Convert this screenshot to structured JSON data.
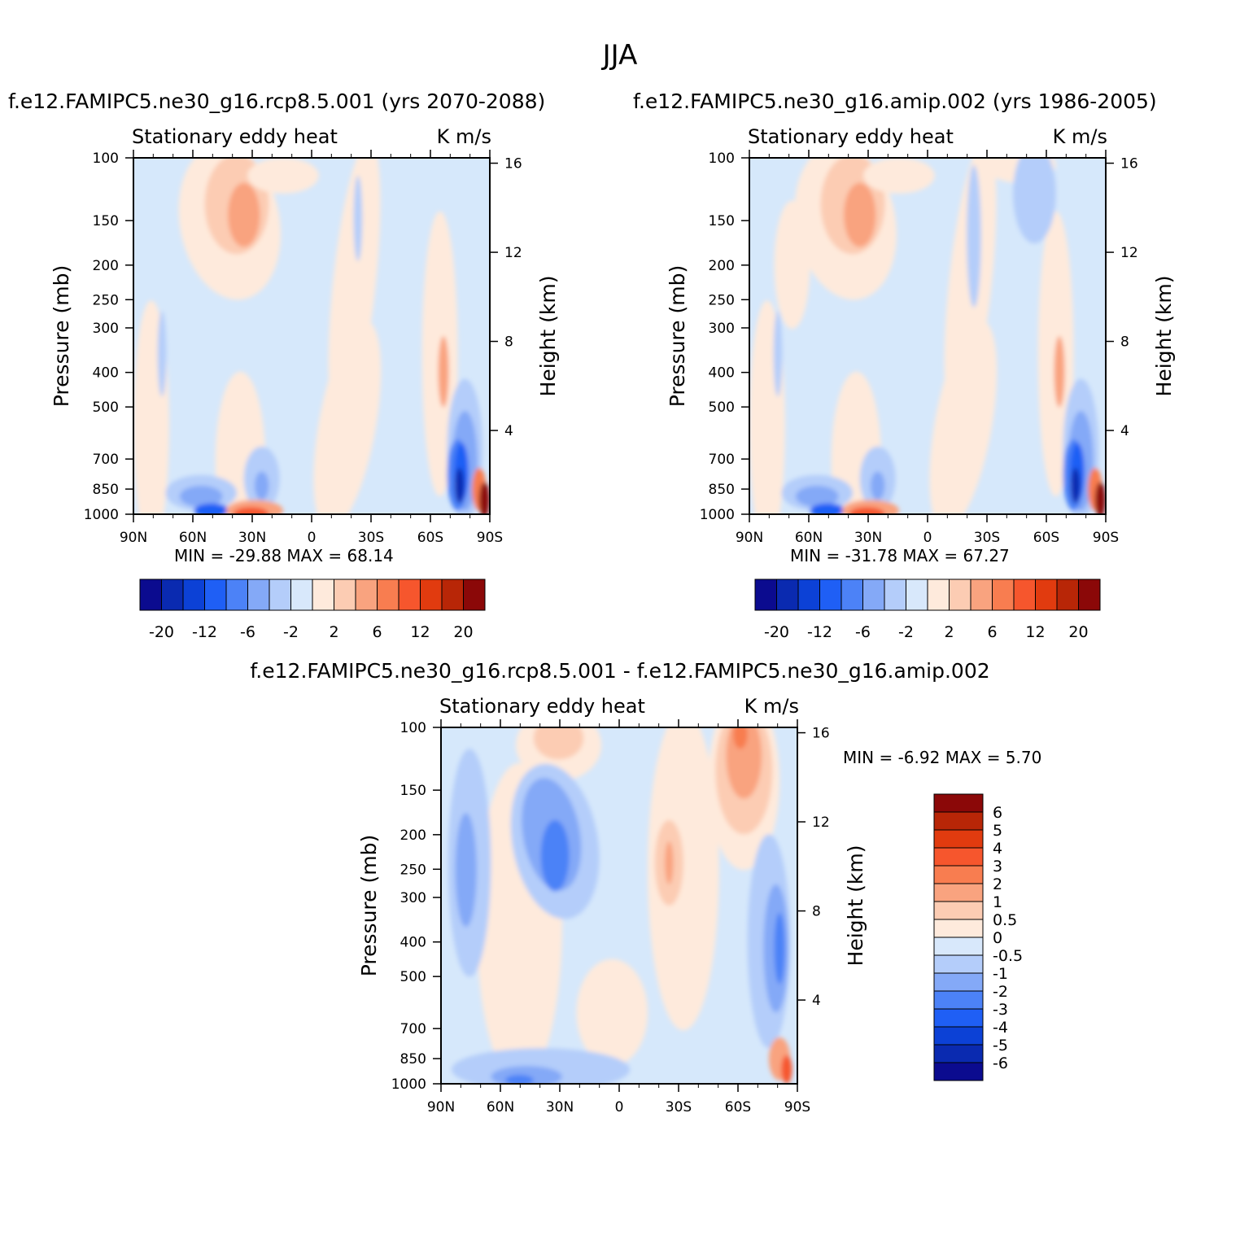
{
  "figure": {
    "title": "JJA",
    "panels": [
      {
        "title": "f.e12.FAMIPC5.ne30_g16.rcp8.5.001 (yrs 2070-2088)",
        "left_label": "Stationary eddy heat",
        "right_label": "K m/s",
        "min_max_text": "MIN = -29.88   MAX =   68.14"
      },
      {
        "title": "f.e12.FAMIPC5.ne30_g16.amip.002 (yrs 1986-2005)",
        "left_label": "Stationary eddy heat",
        "right_label": "K m/s",
        "min_max_text": "MIN = -31.78   MAX =   67.27"
      },
      {
        "title": "f.e12.FAMIPC5.ne30_g16.rcp8.5.001 - f.e12.FAMIPC5.ne30_g16.amip.002",
        "left_label": "Stationary eddy heat",
        "right_label": "K m/s",
        "min_max_text": "MIN =   -6.92   MAX =    5.70"
      }
    ]
  },
  "chart_data": [
    {
      "type": "heatmap",
      "title": "Stationary eddy heat",
      "units": "K m/s",
      "xlabel": "",
      "ylabel": "Pressure (mb)",
      "y2label": "Height (km)",
      "xticks": [
        "90N",
        "60N",
        "30N",
        "0",
        "30S",
        "60S",
        "90S"
      ],
      "yticks": [
        100,
        150,
        200,
        250,
        300,
        400,
        500,
        700,
        850,
        1000
      ],
      "y2ticks": [
        4,
        8,
        12,
        16
      ],
      "min": -29.88,
      "max": 68.14,
      "colorbar_labels": [
        "-20",
        "-12",
        "-6",
        "-2",
        "2",
        "6",
        "12",
        "20"
      ],
      "colorbar_colors": [
        "#0b0b8f",
        "#0a2ab0",
        "#0c41d6",
        "#1f5ff5",
        "#4c82f7",
        "#84a9f7",
        "#b4cdfa",
        "#d8e8fb",
        "#feeadc",
        "#fcccb3",
        "#f9a37f",
        "#f87d50",
        "#f6562d",
        "#e13b0f",
        "#b82607",
        "#8b0808"
      ]
    },
    {
      "type": "heatmap",
      "title": "Stationary eddy heat",
      "units": "K m/s",
      "xlabel": "",
      "ylabel": "Pressure (mb)",
      "y2label": "Height (km)",
      "xticks": [
        "90N",
        "60N",
        "30N",
        "0",
        "30S",
        "60S",
        "90S"
      ],
      "yticks": [
        100,
        150,
        200,
        250,
        300,
        400,
        500,
        700,
        850,
        1000
      ],
      "y2ticks": [
        4,
        8,
        12,
        16
      ],
      "min": -31.78,
      "max": 67.27,
      "colorbar_labels": [
        "-20",
        "-12",
        "-6",
        "-2",
        "2",
        "6",
        "12",
        "20"
      ],
      "colorbar_colors": [
        "#0b0b8f",
        "#0a2ab0",
        "#0c41d6",
        "#1f5ff5",
        "#4c82f7",
        "#84a9f7",
        "#b4cdfa",
        "#d8e8fb",
        "#feeadc",
        "#fcccb3",
        "#f9a37f",
        "#f87d50",
        "#f6562d",
        "#e13b0f",
        "#b82607",
        "#8b0808"
      ]
    },
    {
      "type": "heatmap",
      "title": "Stationary eddy heat",
      "units": "K m/s",
      "xlabel": "",
      "ylabel": "Pressure (mb)",
      "y2label": "Height (km)",
      "xticks": [
        "90N",
        "60N",
        "30N",
        "0",
        "30S",
        "60S",
        "90S"
      ],
      "yticks": [
        100,
        150,
        200,
        250,
        300,
        400,
        500,
        700,
        850,
        1000
      ],
      "y2ticks": [
        4,
        8,
        12,
        16
      ],
      "min": -6.92,
      "max": 5.7,
      "colorbar_labels": [
        "6",
        "5",
        "4",
        "3",
        "2",
        "1",
        "0.5",
        "0",
        "-0.5",
        "-1",
        "-2",
        "-3",
        "-4",
        "-5",
        "-6"
      ],
      "colorbar_colors": [
        "#8b0808",
        "#b82607",
        "#e13b0f",
        "#f6562d",
        "#f87d50",
        "#f9a37f",
        "#fcccb3",
        "#feeadc",
        "#d8e8fb",
        "#b4cdfa",
        "#84a9f7",
        "#4c82f7",
        "#1f5ff5",
        "#0c41d6",
        "#0a2ab0",
        "#0b0b8f"
      ]
    }
  ]
}
